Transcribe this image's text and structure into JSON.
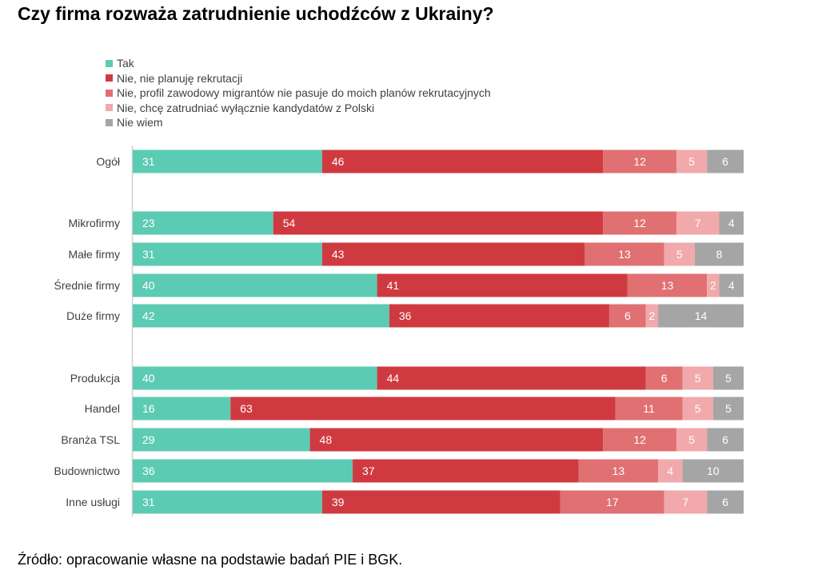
{
  "title": "Czy firma rozważa zatrudnienie uchodźców z Ukrainy?",
  "source": "Źródło: opracowanie własne na podstawie badań PIE i BGK.",
  "colors": [
    "#5ccbb3",
    "#cf3a40",
    "#e07072",
    "#f1a9ab",
    "#a5a5a5"
  ],
  "chart_data": {
    "type": "bar",
    "orientation": "horizontal",
    "stacked": true,
    "title": "Czy firma rozważa zatrudnienie uchodźców z Ukrainy?",
    "legend_position": "top-left",
    "xlim": [
      0,
      100
    ],
    "series": [
      {
        "name": "Tak",
        "values": [
          31,
          23,
          31,
          40,
          42,
          40,
          16,
          29,
          36,
          31
        ]
      },
      {
        "name": "Nie, nie planuję rekrutacji",
        "values": [
          46,
          54,
          43,
          41,
          36,
          44,
          63,
          48,
          37,
          39
        ]
      },
      {
        "name": "Nie, profil zawodowy migrantów nie pasuje do moich planów rekrutacyjnych",
        "values": [
          12,
          12,
          13,
          13,
          6,
          6,
          11,
          12,
          13,
          17
        ]
      },
      {
        "name": "Nie, chcę zatrudniać wyłącznie kandydatów z Polski",
        "values": [
          5,
          7,
          5,
          2,
          2,
          5,
          5,
          5,
          4,
          7
        ]
      },
      {
        "name": "Nie wiem",
        "values": [
          6,
          4,
          8,
          4,
          14,
          5,
          5,
          6,
          10,
          6
        ]
      }
    ],
    "categories": [
      "Ogół",
      "Mikrofirmy",
      "Małe firmy",
      "Średnie firmy",
      "Duże firmy",
      "Produkcja",
      "Handel",
      "Branża TSL",
      "Budownictwo",
      "Inne usługi"
    ]
  }
}
